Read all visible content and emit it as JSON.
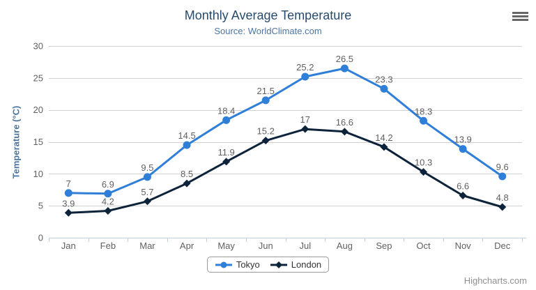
{
  "chart": {
    "credits": "Highcharts.com",
    "context_menu_icon": "hamburger-icon"
  },
  "colors": {
    "title_color": "#274b6d",
    "subtitle_color": "#4d759e",
    "axis_title_color": "#4d759e",
    "axis_label_color": "#606060",
    "data_label_color": "#606060",
    "grid_color": "#d0d0d0",
    "axis_line_color": "#c0d0e0",
    "legend_border_color": "#999999",
    "legend_text_color": "#333333",
    "credits_color": "#909090",
    "burger_color": "#666666",
    "tokyo_color": "#2f7ed8",
    "london_color": "#0d233a"
  },
  "chart_data": {
    "type": "line",
    "title": "Monthly Average Temperature",
    "subtitle": "Source: WorldClimate.com",
    "xlabel": "",
    "ylabel": "Temperature (°C)",
    "categories": [
      "Jan",
      "Feb",
      "Mar",
      "Apr",
      "May",
      "Jun",
      "Jul",
      "Aug",
      "Sep",
      "Oct",
      "Nov",
      "Dec"
    ],
    "series": [
      {
        "name": "Tokyo",
        "color": "#2f7ed8",
        "marker": "circle",
        "values": [
          7,
          6.9,
          9.5,
          14.5,
          18.4,
          21.5,
          25.2,
          26.5,
          23.3,
          18.3,
          13.9,
          9.6
        ]
      },
      {
        "name": "London",
        "color": "#0d233a",
        "marker": "diamond",
        "values": [
          3.9,
          4.2,
          5.7,
          8.5,
          11.9,
          15.2,
          17,
          16.6,
          14.2,
          10.3,
          6.6,
          4.8
        ]
      }
    ],
    "ylim": [
      0,
      30
    ],
    "y_tick_interval": 5,
    "grid": true,
    "data_labels": true,
    "legend_position": "bottom"
  }
}
